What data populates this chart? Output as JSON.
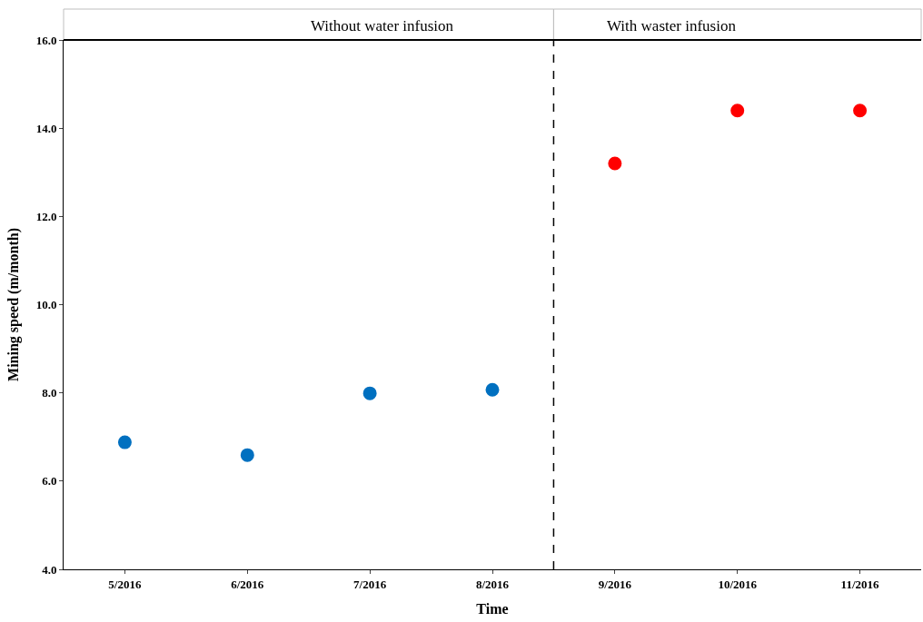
{
  "chart_data": {
    "type": "scatter",
    "xlabel": "Time",
    "ylabel": "Mining speed (m/month)",
    "categories": [
      "5/2016",
      "6/2016",
      "7/2016",
      "8/2016",
      "9/2016",
      "10/2016",
      "11/2016"
    ],
    "series": [
      {
        "color": "#0070c0",
        "values": [
          6.88,
          6.59,
          7.99,
          8.07,
          null,
          null,
          null
        ]
      },
      {
        "color": "#ff0000",
        "values": [
          null,
          null,
          null,
          null,
          13.2,
          14.4,
          14.4
        ]
      }
    ],
    "ylim": [
      4,
      16
    ],
    "yticks": [
      {
        "value": 4,
        "label": "4.0"
      },
      {
        "value": 6,
        "label": "6.0"
      },
      {
        "value": 8,
        "label": "8.0"
      },
      {
        "value": 10,
        "label": "10.0"
      },
      {
        "value": 12,
        "label": "12.0"
      },
      {
        "value": 14,
        "label": "14.0"
      },
      {
        "value": 16,
        "label": "16.0"
      }
    ],
    "annotations": [
      "Without water infusion",
      "With waster infusion"
    ],
    "marker": "circle"
  }
}
